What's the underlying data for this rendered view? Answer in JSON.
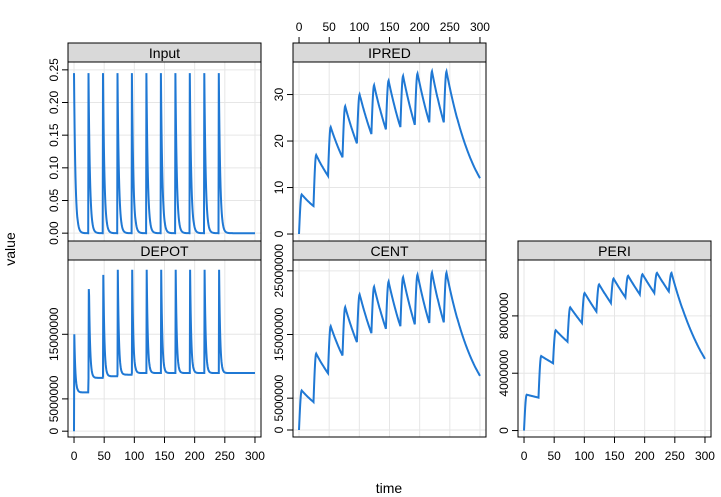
{
  "colors": {
    "line": "#1f78d4",
    "strip_bg": "#d9d9d9",
    "grid": "#e6e6e6",
    "frame": "#000000"
  },
  "chart_data": {
    "type": "line",
    "layout": "trellis 3 columns x 2 rows",
    "xlabel": "time",
    "ylabel": "value",
    "xlim": [
      -10,
      310
    ],
    "x_ticks": [
      0,
      50,
      100,
      150,
      200,
      250,
      300
    ],
    "x_tick_labels": [
      "0",
      "50",
      "100",
      "150",
      "200",
      "250",
      "300"
    ],
    "dose_times": [
      0,
      24,
      48,
      72,
      96,
      120,
      144,
      168,
      192,
      216,
      240
    ],
    "panels": [
      {
        "name": "Input",
        "ylim": [
          -0.012,
          0.262
        ],
        "y_ticks": [
          0,
          0.05,
          0.1,
          0.15,
          0.2,
          0.25
        ],
        "y_tick_labels": [
          "0.00",
          "0.05",
          "0.10",
          "0.15",
          "0.20",
          "0.25"
        ],
        "description": "absorption rate pulses peaking ~0.245 after each dose and decaying to 0 within ~15 time units"
      },
      {
        "name": "IPRED",
        "ylim": [
          -1.5,
          37
        ],
        "y_ticks": [
          0,
          10,
          20,
          30
        ],
        "y_tick_labels": [
          "0",
          "10",
          "20",
          "30"
        ],
        "peaks": [
          8.5,
          17,
          23,
          27.5,
          30,
          32,
          33,
          34,
          34.5,
          35,
          35
        ],
        "troughs": [
          6,
          12.5,
          16.5,
          19.5,
          21.5,
          22.5,
          23,
          23.5,
          24,
          24,
          12
        ]
      },
      {
        "name": "DEPOT",
        "ylim": [
          -900000,
          26500000
        ],
        "y_ticks": [
          0,
          5000000,
          15000000
        ],
        "y_tick_labels": [
          "0",
          "5000000",
          "15000000"
        ],
        "first_peak": 15000000,
        "peak": 25000000,
        "first_trough": 6000000,
        "trough_range": [
          8000000,
          9000000
        ],
        "final_value": 9000000
      },
      {
        "name": "CENT",
        "ylim": [
          -1100000,
          26700000
        ],
        "y_ticks": [
          0,
          5000000,
          15000000,
          25000000
        ],
        "y_tick_labels": [
          "0",
          "5000000",
          "15000000",
          "25000000"
        ],
        "peaks": [
          6200000,
          12000000,
          16300000,
          19300000,
          21300000,
          22500000,
          23300000,
          24000000,
          24400000,
          24700000,
          24700000
        ],
        "troughs": [
          4400000,
          8900000,
          11700000,
          13800000,
          15200000,
          15900000,
          16300000,
          16600000,
          16800000,
          16900000,
          8500000
        ]
      },
      {
        "name": "PERI",
        "ylim": [
          -450000,
          11900000
        ],
        "y_ticks": [
          0,
          4000000,
          8000000
        ],
        "y_tick_labels": [
          "0",
          "4000000",
          "8000000"
        ],
        "peaks": [
          2500000,
          5200000,
          7000000,
          8600000,
          9600000,
          10200000,
          10600000,
          10800000,
          10900000,
          11000000,
          11000000
        ],
        "troughs": [
          2300000,
          4700000,
          6200000,
          7500000,
          8300000,
          8900000,
          9300000,
          9500000,
          9600000,
          9700000,
          5000000
        ]
      }
    ]
  }
}
